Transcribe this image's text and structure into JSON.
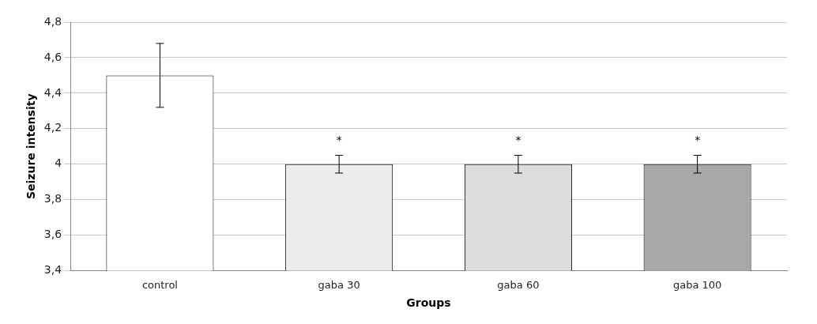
{
  "chart_data": {
    "type": "bar",
    "xlabel": "Groups",
    "ylabel": "Seizure intensity",
    "categories": [
      "control",
      "gaba 30",
      "gaba 60",
      "gaba 100"
    ],
    "values": [
      4.5,
      4.0,
      4.0,
      4.0
    ],
    "colors": [
      "#ffffff",
      "#ececec",
      "#dcdcdc",
      "#a8a8a8"
    ],
    "errors": [
      0.18,
      0.05,
      0.05,
      0.05
    ],
    "ylim": [
      3.4,
      4.8
    ],
    "yticks": [
      {
        "value": 3.4,
        "label": "3,4"
      },
      {
        "value": 3.6,
        "label": "3,6"
      },
      {
        "value": 3.8,
        "label": "3,8"
      },
      4,
      {
        "value": 4.2,
        "label": "4,2"
      },
      {
        "value": 4.4,
        "label": "4,4"
      },
      {
        "value": 4.6,
        "label": "4,6"
      },
      {
        "value": 4.8,
        "label": "4,8"
      }
    ],
    "grid": "y",
    "legend": false,
    "annotations": [
      "*",
      "*",
      "*"
    ]
  }
}
